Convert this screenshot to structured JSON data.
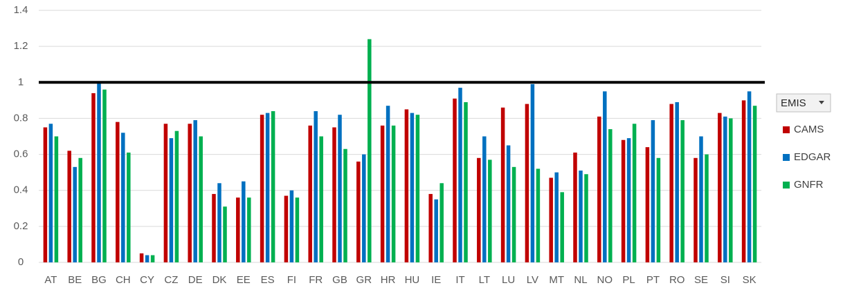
{
  "chart_data": {
    "type": "bar",
    "categories": [
      "AT",
      "BE",
      "BG",
      "CH",
      "CY",
      "CZ",
      "DE",
      "DK",
      "EE",
      "ES",
      "FI",
      "FR",
      "GB",
      "GR",
      "HR",
      "HU",
      "IE",
      "IT",
      "LT",
      "LU",
      "LV",
      "MT",
      "NL",
      "NO",
      "PL",
      "PT",
      "RO",
      "SE",
      "SI",
      "SK"
    ],
    "series": [
      {
        "name": "CAMS",
        "color": "#c00000",
        "values": [
          0.75,
          0.62,
          0.94,
          0.78,
          0.05,
          0.77,
          0.77,
          0.38,
          0.36,
          0.82,
          0.37,
          0.76,
          0.75,
          0.56,
          0.76,
          0.85,
          0.38,
          0.91,
          0.58,
          0.86,
          0.88,
          0.47,
          0.61,
          0.81,
          0.68,
          0.64,
          0.88,
          0.58,
          0.83,
          0.9
        ]
      },
      {
        "name": "EDGAR",
        "color": "#0070c0",
        "values": [
          0.77,
          0.53,
          1.0,
          0.72,
          0.04,
          0.69,
          0.79,
          0.44,
          0.45,
          0.83,
          0.4,
          0.84,
          0.82,
          0.6,
          0.87,
          0.83,
          0.35,
          0.97,
          0.7,
          0.65,
          0.99,
          0.5,
          0.51,
          0.95,
          0.69,
          0.79,
          0.89,
          0.7,
          0.81,
          0.95
        ]
      },
      {
        "name": "GNFR",
        "color": "#00b050",
        "values": [
          0.7,
          0.58,
          0.96,
          0.61,
          0.04,
          0.73,
          0.7,
          0.31,
          0.36,
          0.84,
          0.36,
          0.7,
          0.63,
          1.24,
          0.76,
          0.82,
          0.44,
          0.89,
          0.57,
          0.53,
          0.52,
          0.39,
          0.49,
          0.74,
          0.77,
          0.58,
          0.79,
          0.6,
          0.8,
          0.87
        ]
      }
    ],
    "ylim": [
      0,
      1.4
    ],
    "yticks": [
      0,
      0.2,
      0.4,
      0.6,
      0.8,
      1,
      1.2,
      1.4
    ],
    "grid": true,
    "reference_line": 1,
    "legend_title": "EMIS",
    "legend": "right"
  }
}
